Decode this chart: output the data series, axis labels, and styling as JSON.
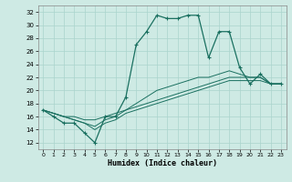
{
  "title": "",
  "xlabel": "Humidex (Indice chaleur)",
  "ylabel": "",
  "xlim": [
    -0.5,
    23.5
  ],
  "ylim": [
    11,
    33
  ],
  "yticks": [
    12,
    14,
    16,
    18,
    20,
    22,
    24,
    26,
    28,
    30,
    32
  ],
  "xticks": [
    0,
    1,
    2,
    3,
    4,
    5,
    6,
    7,
    8,
    9,
    10,
    11,
    12,
    13,
    14,
    15,
    16,
    17,
    18,
    19,
    20,
    21,
    22,
    23
  ],
  "bg_color": "#ceeae4",
  "grid_color": "#aad4cc",
  "line_color": "#1a7060",
  "lines": [
    {
      "x": [
        0,
        1,
        2,
        3,
        4,
        5,
        6,
        7,
        8,
        9,
        10,
        11,
        12,
        13,
        14,
        15,
        16,
        17,
        18,
        19,
        20,
        21,
        22,
        23
      ],
      "y": [
        17,
        16,
        15,
        15,
        13.5,
        12,
        16,
        16,
        19,
        27,
        29,
        31.5,
        31,
        31,
        31.5,
        31.5,
        25,
        29,
        29,
        23.5,
        21,
        22.5,
        21,
        21
      ],
      "marker": true
    },
    {
      "x": [
        0,
        1,
        2,
        3,
        4,
        5,
        6,
        7,
        8,
        9,
        10,
        11,
        12,
        13,
        14,
        15,
        16,
        17,
        18,
        19,
        20,
        21,
        22,
        23
      ],
      "y": [
        17,
        16.5,
        16,
        16,
        15.5,
        15.5,
        16,
        16.5,
        17,
        18,
        19,
        20,
        20.5,
        21,
        21.5,
        22,
        22,
        22.5,
        23,
        22.5,
        22,
        22,
        21,
        21
      ],
      "marker": false
    },
    {
      "x": [
        0,
        1,
        2,
        3,
        4,
        5,
        6,
        7,
        8,
        9,
        10,
        11,
        12,
        13,
        14,
        15,
        16,
        17,
        18,
        19,
        20,
        21,
        22,
        23
      ],
      "y": [
        17,
        16.5,
        16,
        15.5,
        15,
        14.5,
        15.5,
        16,
        17,
        17.5,
        18,
        18.5,
        19,
        19.5,
        20,
        20.5,
        21,
        21.5,
        22,
        22,
        22,
        22,
        21,
        21
      ],
      "marker": false
    },
    {
      "x": [
        0,
        1,
        2,
        3,
        4,
        5,
        6,
        7,
        8,
        9,
        10,
        11,
        12,
        13,
        14,
        15,
        16,
        17,
        18,
        19,
        20,
        21,
        22,
        23
      ],
      "y": [
        17,
        16.5,
        16,
        15.5,
        15,
        14,
        15,
        15.5,
        16.5,
        17,
        17.5,
        18,
        18.5,
        19,
        19.5,
        20,
        20.5,
        21,
        21.5,
        21.5,
        21.5,
        21.5,
        21,
        21
      ],
      "marker": false
    }
  ]
}
